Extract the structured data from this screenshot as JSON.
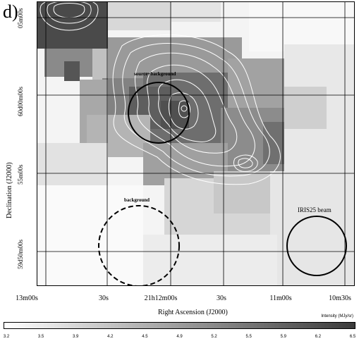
{
  "figure": {
    "panel_label": "d)",
    "y_axis_label": "Declination (J2000)",
    "x_axis_label": "Right Ascension (J2000)",
    "y_ticks": [
      "05m00s",
      "60d00m00s",
      "55m00s",
      "59d50m00s"
    ],
    "x_ticks": [
      "13m00s",
      "30s",
      "21h12m00s",
      "30s",
      "11m00s",
      "10m30s"
    ],
    "annotations": {
      "source_circle": "source+background",
      "background_circle": "background",
      "beam_circle": "IRIS25 beam"
    },
    "colorbar": {
      "title": "Intensity (MJy/sr)",
      "ticks": [
        "3.2",
        "3.5",
        "3.9",
        "4.2",
        "4.5",
        "4.9",
        "5.2",
        "5.5",
        "5.9",
        "6.2",
        "6.5"
      ],
      "low_color": "#ffffff",
      "high_color": "#3a3a3a"
    }
  }
}
